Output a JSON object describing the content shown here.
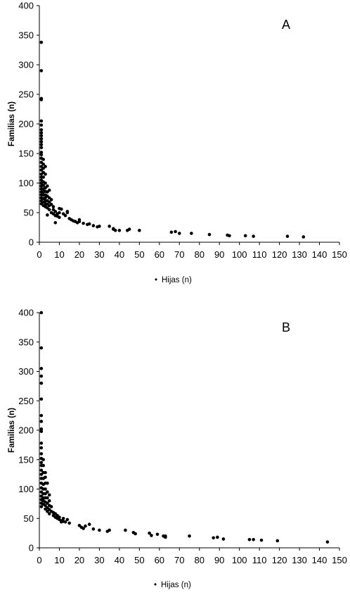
{
  "chart_data": [
    {
      "type": "scatter",
      "label": "A",
      "xlabel": "Hijas (n)",
      "ylabel": "Familias (n)",
      "xlim": [
        0,
        150
      ],
      "ylim": [
        0,
        400
      ],
      "x_ticks": [
        0,
        10,
        20,
        30,
        40,
        50,
        60,
        70,
        80,
        90,
        100,
        110,
        120,
        130,
        140,
        150
      ],
      "y_ticks": [
        0,
        50,
        100,
        150,
        200,
        250,
        300,
        350,
        400
      ],
      "legend_marker": "•",
      "grid": false,
      "points": [
        [
          1,
          338
        ],
        [
          1,
          290
        ],
        [
          1,
          243
        ],
        [
          1,
          241
        ],
        [
          1,
          205
        ],
        [
          1,
          198
        ],
        [
          1,
          190
        ],
        [
          1,
          185
        ],
        [
          1,
          180
        ],
        [
          1,
          175
        ],
        [
          1,
          170
        ],
        [
          1,
          165
        ],
        [
          1,
          160
        ],
        [
          1,
          152
        ],
        [
          1,
          148
        ],
        [
          1,
          142
        ],
        [
          1,
          135
        ],
        [
          1,
          128
        ],
        [
          1,
          122
        ],
        [
          1,
          115
        ],
        [
          1,
          110
        ],
        [
          1,
          105
        ],
        [
          1,
          100
        ],
        [
          1,
          95
        ],
        [
          1,
          90
        ],
        [
          1,
          85
        ],
        [
          1,
          80
        ],
        [
          1,
          75
        ],
        [
          1,
          70
        ],
        [
          1,
          65
        ],
        [
          2,
          140
        ],
        [
          2,
          132
        ],
        [
          2,
          125
        ],
        [
          2,
          118
        ],
        [
          2,
          110
        ],
        [
          2,
          102
        ],
        [
          2,
          96
        ],
        [
          2,
          90
        ],
        [
          2,
          85
        ],
        [
          2,
          80
        ],
        [
          2,
          74
        ],
        [
          2,
          68
        ],
        [
          2,
          62
        ],
        [
          3,
          128
        ],
        [
          3,
          115
        ],
        [
          3,
          100
        ],
        [
          3,
          92
        ],
        [
          3,
          86
        ],
        [
          3,
          80
        ],
        [
          3,
          75
        ],
        [
          3,
          70
        ],
        [
          3,
          65
        ],
        [
          3,
          60
        ],
        [
          4,
          95
        ],
        [
          4,
          85
        ],
        [
          4,
          78
        ],
        [
          4,
          70
        ],
        [
          4,
          64
        ],
        [
          4,
          58
        ],
        [
          4,
          46
        ],
        [
          5,
          88
        ],
        [
          5,
          75
        ],
        [
          5,
          68
        ],
        [
          5,
          62
        ],
        [
          5,
          55
        ],
        [
          6,
          72
        ],
        [
          6,
          64
        ],
        [
          6,
          50
        ],
        [
          7,
          60
        ],
        [
          7,
          55
        ],
        [
          7,
          48
        ],
        [
          8,
          52
        ],
        [
          8,
          33
        ],
        [
          8,
          45
        ],
        [
          9,
          48
        ],
        [
          9,
          44
        ],
        [
          10,
          57
        ],
        [
          10,
          50
        ],
        [
          10,
          42
        ],
        [
          11,
          56
        ],
        [
          12,
          48
        ],
        [
          13,
          45
        ],
        [
          14,
          52
        ],
        [
          14,
          50
        ],
        [
          15,
          40
        ],
        [
          16,
          38
        ],
        [
          17,
          36
        ],
        [
          18,
          35
        ],
        [
          19,
          33
        ],
        [
          20,
          38
        ],
        [
          20,
          35
        ],
        [
          22,
          32
        ],
        [
          24,
          30
        ],
        [
          25,
          31
        ],
        [
          27,
          28
        ],
        [
          29,
          26
        ],
        [
          30,
          27
        ],
        [
          35,
          27
        ],
        [
          37,
          22
        ],
        [
          37,
          23
        ],
        [
          38,
          20
        ],
        [
          40,
          20
        ],
        [
          44,
          20
        ],
        [
          45,
          22
        ],
        [
          50,
          20
        ],
        [
          66,
          17
        ],
        [
          68,
          18
        ],
        [
          70,
          15
        ],
        [
          76,
          15
        ],
        [
          85,
          13
        ],
        [
          94,
          12
        ],
        [
          95,
          11
        ],
        [
          103,
          11
        ],
        [
          107,
          10
        ],
        [
          124,
          10
        ],
        [
          132,
          9
        ]
      ]
    },
    {
      "type": "scatter",
      "label": "B",
      "xlabel": "Hijas (n)",
      "ylabel": "Familias (n)",
      "xlim": [
        0,
        150
      ],
      "ylim": [
        0,
        400
      ],
      "x_ticks": [
        0,
        10,
        20,
        30,
        40,
        50,
        60,
        70,
        80,
        90,
        100,
        110,
        120,
        130,
        140,
        150
      ],
      "y_ticks": [
        0,
        50,
        100,
        150,
        200,
        250,
        300,
        350,
        400
      ],
      "legend_marker": "•",
      "grid": false,
      "points": [
        [
          1,
          400
        ],
        [
          1,
          340
        ],
        [
          1,
          305
        ],
        [
          1,
          292
        ],
        [
          1,
          280
        ],
        [
          1,
          253
        ],
        [
          1,
          225
        ],
        [
          1,
          215
        ],
        [
          1,
          202
        ],
        [
          1,
          198
        ],
        [
          1,
          178
        ],
        [
          1,
          170
        ],
        [
          1,
          160
        ],
        [
          1,
          152
        ],
        [
          1,
          145
        ],
        [
          1,
          140
        ],
        [
          1,
          132
        ],
        [
          1,
          125
        ],
        [
          1,
          118
        ],
        [
          1,
          110
        ],
        [
          1,
          102
        ],
        [
          1,
          95
        ],
        [
          1,
          88
        ],
        [
          1,
          82
        ],
        [
          1,
          76
        ],
        [
          1,
          70
        ],
        [
          2,
          150
        ],
        [
          2,
          140
        ],
        [
          2,
          128
        ],
        [
          2,
          118
        ],
        [
          2,
          108
        ],
        [
          2,
          100
        ],
        [
          2,
          92
        ],
        [
          2,
          85
        ],
        [
          2,
          80
        ],
        [
          2,
          74
        ],
        [
          3,
          128
        ],
        [
          3,
          120
        ],
        [
          3,
          110
        ],
        [
          3,
          100
        ],
        [
          3,
          92
        ],
        [
          3,
          85
        ],
        [
          3,
          78
        ],
        [
          3,
          72
        ],
        [
          3,
          66
        ],
        [
          4,
          110
        ],
        [
          4,
          95
        ],
        [
          4,
          85
        ],
        [
          4,
          76
        ],
        [
          4,
          68
        ],
        [
          4,
          62
        ],
        [
          5,
          90
        ],
        [
          5,
          80
        ],
        [
          5,
          72
        ],
        [
          5,
          65
        ],
        [
          5,
          58
        ],
        [
          6,
          70
        ],
        [
          6,
          62
        ],
        [
          7,
          60
        ],
        [
          7,
          55
        ],
        [
          8,
          58
        ],
        [
          8,
          52
        ],
        [
          9,
          55
        ],
        [
          9,
          50
        ],
        [
          10,
          52
        ],
        [
          10,
          48
        ],
        [
          11,
          46
        ],
        [
          11,
          44
        ],
        [
          12,
          50
        ],
        [
          12,
          45
        ],
        [
          13,
          44
        ],
        [
          14,
          48
        ],
        [
          15,
          42
        ],
        [
          20,
          38
        ],
        [
          21,
          35
        ],
        [
          22,
          33
        ],
        [
          23,
          37
        ],
        [
          25,
          40
        ],
        [
          27,
          32
        ],
        [
          30,
          30
        ],
        [
          34,
          28
        ],
        [
          35,
          30
        ],
        [
          43,
          30
        ],
        [
          47,
          26
        ],
        [
          48,
          24
        ],
        [
          55,
          25
        ],
        [
          56,
          21
        ],
        [
          59,
          23
        ],
        [
          62,
          20
        ],
        [
          63,
          18
        ],
        [
          63,
          20
        ],
        [
          75,
          20
        ],
        [
          87,
          17
        ],
        [
          89,
          18
        ],
        [
          92,
          15
        ],
        [
          105,
          14
        ],
        [
          107,
          14
        ],
        [
          111,
          13
        ],
        [
          119,
          12
        ],
        [
          144,
          10
        ]
      ]
    }
  ]
}
